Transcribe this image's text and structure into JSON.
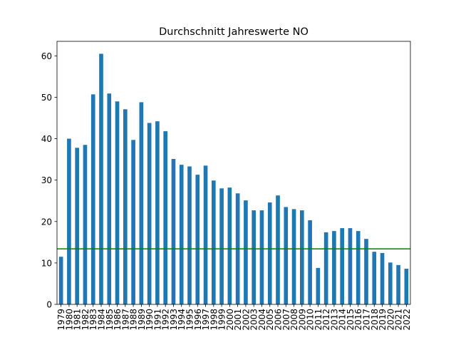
{
  "chart_data": {
    "type": "bar",
    "title": "Durchschnitt Jahreswerte NO",
    "xlabel": "",
    "ylabel": "",
    "ylim": [
      0,
      63.5
    ],
    "yticks": [
      0,
      10,
      20,
      30,
      40,
      50,
      60
    ],
    "grid": false,
    "bar_color": "#1f77b4",
    "categories": [
      "1979",
      "1980",
      "1981",
      "1982",
      "1983",
      "1984",
      "1985",
      "1986",
      "1987",
      "1988",
      "1989",
      "1990",
      "1991",
      "1992",
      "1993",
      "1994",
      "1995",
      "1996",
      "1997",
      "1998",
      "1999",
      "2000",
      "2001",
      "2002",
      "2003",
      "2004",
      "2005",
      "2006",
      "2007",
      "2008",
      "2009",
      "2010",
      "2011",
      "2012",
      "2013",
      "2014",
      "2015",
      "2016",
      "2017",
      "2018",
      "2019",
      "2020",
      "2021",
      "2022"
    ],
    "values": [
      11.5,
      40.0,
      37.8,
      38.5,
      50.7,
      60.5,
      50.9,
      49.0,
      47.1,
      39.7,
      48.8,
      43.8,
      44.2,
      41.8,
      35.1,
      33.7,
      33.3,
      31.3,
      33.5,
      29.9,
      28.0,
      28.2,
      26.8,
      25.1,
      22.7,
      22.7,
      24.6,
      26.3,
      23.5,
      23.0,
      22.7,
      20.3,
      8.8,
      17.4,
      17.7,
      18.4,
      18.4,
      17.7,
      15.8,
      12.7,
      12.4,
      10.1,
      9.5,
      8.6
    ],
    "reference_line": {
      "value": 13.4,
      "color": "#008000"
    }
  }
}
